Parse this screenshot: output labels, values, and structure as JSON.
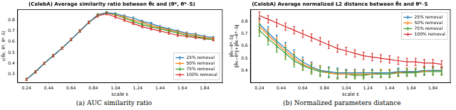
{
  "chart_data": [
    {
      "type": "line",
      "title": "(CelebA) Average similarity ratio between θ̂ε and (θ*, θ*₋S)",
      "x_label": "scale ε",
      "y_label": "γ(θ̂ε, θ*, θ*₋S)",
      "caption": "(a) AUC similarity ratio",
      "x": [
        0.24,
        0.32,
        0.4,
        0.48,
        0.56,
        0.64,
        0.72,
        0.8,
        0.88,
        0.96,
        1.04,
        1.12,
        1.2,
        1.28,
        1.36,
        1.44,
        1.52,
        1.6,
        1.68,
        1.76,
        1.84,
        1.92
      ],
      "xlim": [
        0.16,
        2.0
      ],
      "xticks": [
        0.24,
        0.44,
        0.64,
        0.84,
        1.04,
        1.24,
        1.44,
        1.64,
        1.84
      ],
      "ylim": [
        0.22,
        0.9
      ],
      "yticks": [
        0.3,
        0.4,
        0.5,
        0.6,
        0.7,
        0.8
      ],
      "grid": false,
      "legend": "lower right",
      "series": [
        {
          "name": "25% removal",
          "color": "#1f77b4",
          "values": [
            0.25,
            0.32,
            0.4,
            0.47,
            0.54,
            0.62,
            0.7,
            0.78,
            0.85,
            0.87,
            0.86,
            0.84,
            0.82,
            0.79,
            0.77,
            0.74,
            0.72,
            0.7,
            0.68,
            0.67,
            0.65,
            0.64
          ],
          "errors": [
            0.01,
            0.01,
            0.01,
            0.01,
            0.01,
            0.01,
            0.01,
            0.01,
            0.01,
            0.01,
            0.01,
            0.01,
            0.01,
            0.01,
            0.01,
            0.01,
            0.01,
            0.01,
            0.01,
            0.01,
            0.01,
            0.01
          ]
        },
        {
          "name": "50% removal",
          "color": "#ff7f0e",
          "values": [
            0.25,
            0.32,
            0.4,
            0.47,
            0.54,
            0.62,
            0.7,
            0.78,
            0.85,
            0.87,
            0.85,
            0.83,
            0.8,
            0.78,
            0.75,
            0.73,
            0.71,
            0.69,
            0.67,
            0.66,
            0.64,
            0.63
          ],
          "errors": [
            0.01,
            0.01,
            0.01,
            0.01,
            0.01,
            0.01,
            0.01,
            0.01,
            0.01,
            0.01,
            0.01,
            0.01,
            0.01,
            0.01,
            0.01,
            0.01,
            0.01,
            0.01,
            0.01,
            0.01,
            0.01,
            0.01
          ]
        },
        {
          "name": "75% removal",
          "color": "#2ca02c",
          "values": [
            0.25,
            0.32,
            0.4,
            0.47,
            0.54,
            0.62,
            0.7,
            0.78,
            0.85,
            0.87,
            0.85,
            0.82,
            0.79,
            0.76,
            0.74,
            0.72,
            0.7,
            0.68,
            0.66,
            0.65,
            0.63,
            0.62
          ],
          "errors": [
            0.01,
            0.01,
            0.01,
            0.01,
            0.01,
            0.01,
            0.01,
            0.01,
            0.01,
            0.01,
            0.01,
            0.01,
            0.01,
            0.01,
            0.01,
            0.01,
            0.01,
            0.01,
            0.01,
            0.01,
            0.01,
            0.01
          ]
        },
        {
          "name": "100% removal",
          "color": "#d62728",
          "values": [
            0.25,
            0.32,
            0.4,
            0.47,
            0.54,
            0.62,
            0.7,
            0.78,
            0.84,
            0.86,
            0.83,
            0.8,
            0.77,
            0.74,
            0.72,
            0.7,
            0.68,
            0.66,
            0.65,
            0.64,
            0.63,
            0.62
          ],
          "errors": [
            0.01,
            0.01,
            0.01,
            0.01,
            0.01,
            0.01,
            0.01,
            0.01,
            0.01,
            0.01,
            0.01,
            0.01,
            0.01,
            0.01,
            0.01,
            0.01,
            0.01,
            0.01,
            0.01,
            0.01,
            0.01,
            0.01
          ]
        }
      ]
    },
    {
      "type": "line",
      "title": "(CelebA) Average normalized L2 distance between θ̂ε and θ*₋S",
      "x_label": "scale ε",
      "y_label": [
        "‖θ̂ε−θ*₋S‖",
        "‖θ̂ε−θ*‖+‖θ̂ε−θ*₋S‖"
      ],
      "caption": "(b) Normalized parameters distance",
      "x": [
        0.24,
        0.32,
        0.4,
        0.48,
        0.56,
        0.64,
        0.72,
        0.8,
        0.88,
        0.96,
        1.04,
        1.12,
        1.2,
        1.28,
        1.36,
        1.44,
        1.52,
        1.6,
        1.68,
        1.76,
        1.84,
        1.92
      ],
      "xlim": [
        0.16,
        2.0
      ],
      "xticks": [
        0.24,
        0.44,
        0.64,
        0.84,
        1.04,
        1.24,
        1.44,
        1.64,
        1.84
      ],
      "ylim": [
        0.3,
        0.9
      ],
      "yticks": [
        0.4,
        0.5,
        0.6,
        0.7,
        0.8
      ],
      "grid": false,
      "legend": "upper right",
      "series": [
        {
          "name": "25% removal",
          "color": "#1f77b4",
          "values": [
            0.78,
            0.71,
            0.64,
            0.58,
            0.52,
            0.47,
            0.43,
            0.4,
            0.39,
            0.38,
            0.38,
            0.38,
            0.38,
            0.38,
            0.38,
            0.38,
            0.39,
            0.39,
            0.39,
            0.4,
            0.4,
            0.4
          ],
          "errors": [
            0.05,
            0.05,
            0.05,
            0.05,
            0.05,
            0.04,
            0.04,
            0.04,
            0.04,
            0.04,
            0.03,
            0.03,
            0.03,
            0.03,
            0.03,
            0.03,
            0.03,
            0.03,
            0.03,
            0.03,
            0.03,
            0.03
          ]
        },
        {
          "name": "50% removal",
          "color": "#ff7f0e",
          "values": [
            0.76,
            0.69,
            0.62,
            0.56,
            0.5,
            0.45,
            0.42,
            0.4,
            0.38,
            0.37,
            0.37,
            0.37,
            0.37,
            0.37,
            0.38,
            0.38,
            0.38,
            0.39,
            0.39,
            0.39,
            0.4,
            0.4
          ],
          "errors": [
            0.05,
            0.05,
            0.05,
            0.05,
            0.05,
            0.04,
            0.04,
            0.04,
            0.04,
            0.04,
            0.03,
            0.03,
            0.03,
            0.03,
            0.03,
            0.03,
            0.03,
            0.03,
            0.03,
            0.03,
            0.03,
            0.03
          ]
        },
        {
          "name": "75% removal",
          "color": "#2ca02c",
          "values": [
            0.73,
            0.66,
            0.6,
            0.54,
            0.48,
            0.44,
            0.41,
            0.39,
            0.38,
            0.37,
            0.37,
            0.36,
            0.36,
            0.37,
            0.37,
            0.37,
            0.38,
            0.38,
            0.38,
            0.39,
            0.39,
            0.39
          ],
          "errors": [
            0.05,
            0.05,
            0.05,
            0.05,
            0.05,
            0.04,
            0.04,
            0.04,
            0.04,
            0.04,
            0.03,
            0.03,
            0.03,
            0.03,
            0.03,
            0.03,
            0.03,
            0.03,
            0.03,
            0.03,
            0.03,
            0.03
          ]
        },
        {
          "name": "100% removal",
          "color": "#d62728",
          "values": [
            0.85,
            0.82,
            0.79,
            0.76,
            0.73,
            0.7,
            0.67,
            0.64,
            0.61,
            0.58,
            0.56,
            0.54,
            0.52,
            0.51,
            0.5,
            0.49,
            0.48,
            0.47,
            0.47,
            0.46,
            0.46,
            0.45
          ],
          "errors": [
            0.03,
            0.03,
            0.03,
            0.03,
            0.03,
            0.03,
            0.03,
            0.03,
            0.03,
            0.03,
            0.03,
            0.03,
            0.03,
            0.03,
            0.03,
            0.03,
            0.03,
            0.03,
            0.03,
            0.03,
            0.03,
            0.03
          ]
        }
      ]
    }
  ]
}
